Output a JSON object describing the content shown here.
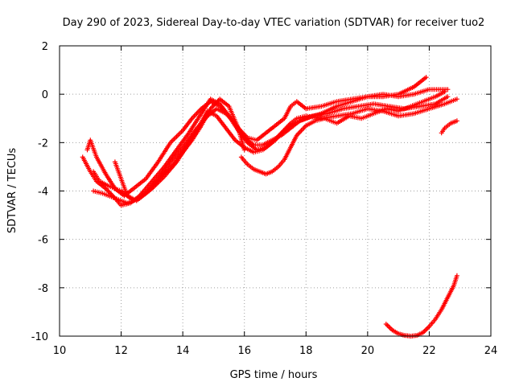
{
  "chart_data": {
    "type": "scatter",
    "title": "Day 290 of 2023, Sidereal Day-to-day VTEC variation (SDTVAR) for receiver tuo2",
    "xlabel": "GPS time / hours",
    "ylabel": "SDTVAR / TECUs",
    "xlim": [
      10,
      24
    ],
    "ylim": [
      -10,
      2
    ],
    "xticks": [
      10,
      12,
      14,
      16,
      18,
      20,
      22,
      24
    ],
    "yticks": [
      -10,
      -8,
      -6,
      -4,
      -2,
      0,
      2
    ],
    "xtick_labels": [
      "10",
      "12",
      "14",
      "16",
      "18",
      "20",
      "22",
      "24"
    ],
    "ytick_labels": [
      "-10",
      "-8",
      "-6",
      "-4",
      "-2",
      "0",
      "2"
    ],
    "grid": true,
    "marker": "+",
    "color": "#ff0000",
    "series": [
      {
        "name": "track-1",
        "x": [
          10.75,
          11.0,
          11.2,
          11.5,
          11.8,
          12.0,
          12.3,
          12.6,
          13.0,
          13.4,
          13.8,
          14.2,
          14.6,
          14.9,
          15.2,
          15.5,
          15.8,
          16.1,
          16.4,
          16.7,
          17.0,
          17.3,
          17.6,
          18.0,
          18.5,
          19.0,
          19.5,
          20.0,
          20.5,
          21.0,
          21.5,
          21.9
        ],
        "y": [
          -2.6,
          -3.2,
          -3.6,
          -3.9,
          -4.3,
          -4.6,
          -4.5,
          -4.2,
          -3.6,
          -3.0,
          -2.3,
          -1.6,
          -0.8,
          -0.2,
          -0.4,
          -0.9,
          -1.5,
          -2.0,
          -2.3,
          -2.2,
          -1.9,
          -1.5,
          -1.2,
          -1.0,
          -0.8,
          -0.5,
          -0.3,
          -0.1,
          -0.1,
          0.0,
          0.3,
          0.7
        ]
      },
      {
        "name": "track-2",
        "x": [
          10.9,
          11.0,
          11.2,
          11.5,
          11.8,
          12.1,
          12.4,
          12.8,
          13.2,
          13.6,
          14.0,
          14.3,
          14.6,
          14.9,
          15.2,
          15.5,
          15.8,
          16.1,
          16.4,
          16.7,
          17.0,
          17.3,
          17.5,
          17.7,
          18.0,
          18.5,
          19.0,
          19.5,
          20.0,
          20.5,
          21.0,
          21.5,
          22.0,
          22.6
        ],
        "y": [
          -2.3,
          -1.9,
          -2.6,
          -3.3,
          -3.9,
          -4.2,
          -3.9,
          -3.5,
          -2.8,
          -2.0,
          -1.5,
          -1.0,
          -0.6,
          -0.3,
          -0.5,
          -0.9,
          -1.4,
          -1.8,
          -1.9,
          -1.6,
          -1.3,
          -1.0,
          -0.5,
          -0.3,
          -0.6,
          -0.5,
          -0.3,
          -0.2,
          -0.1,
          0.0,
          -0.1,
          0.0,
          0.2,
          0.2
        ]
      },
      {
        "name": "track-3",
        "x": [
          11.1,
          11.3,
          11.6,
          12.0,
          12.4,
          12.8,
          13.2,
          13.6,
          14.0,
          14.4,
          14.8,
          15.1,
          15.4,
          15.7,
          16.0,
          16.3,
          16.6,
          16.9,
          17.2,
          17.5,
          17.8,
          18.2,
          18.7,
          19.2,
          19.7,
          20.2,
          20.7,
          21.2,
          21.7,
          22.2,
          22.6
        ],
        "y": [
          -3.2,
          -3.6,
          -3.8,
          -4.0,
          -4.4,
          -4.1,
          -3.5,
          -2.8,
          -2.2,
          -1.5,
          -0.9,
          -0.6,
          -0.8,
          -1.2,
          -1.8,
          -2.1,
          -2.1,
          -1.9,
          -1.7,
          -1.4,
          -1.1,
          -0.9,
          -0.8,
          -0.6,
          -0.5,
          -0.4,
          -0.5,
          -0.6,
          -0.5,
          -0.4,
          -0.1
        ]
      },
      {
        "name": "track-4",
        "x": [
          11.1,
          11.4,
          11.8,
          12.2,
          12.6,
          13.0,
          13.4,
          13.8,
          14.2,
          14.5,
          14.8,
          15.1,
          15.4,
          15.7,
          16.0,
          16.3,
          16.6,
          16.9,
          17.2,
          17.5,
          17.7,
          18.0,
          18.5,
          19.0,
          19.5,
          20.0,
          20.5,
          21.0,
          21.5,
          22.0,
          22.5,
          22.9
        ],
        "y": [
          -4.0,
          -4.1,
          -4.3,
          -4.5,
          -4.3,
          -3.9,
          -3.4,
          -2.8,
          -2.0,
          -1.4,
          -0.7,
          -0.9,
          -1.4,
          -1.9,
          -2.2,
          -2.4,
          -2.3,
          -2.0,
          -1.6,
          -1.2,
          -1.0,
          -0.9,
          -1.0,
          -0.9,
          -0.8,
          -0.6,
          -0.7,
          -0.9,
          -0.8,
          -0.6,
          -0.4,
          -0.2
        ]
      },
      {
        "name": "track-5",
        "x": [
          11.8,
          12.0,
          12.2,
          12.5,
          12.9,
          13.3,
          13.7,
          14.0,
          14.3,
          14.6,
          14.9,
          15.2,
          15.5,
          15.8,
          16.0
        ],
        "y": [
          -2.8,
          -3.5,
          -4.2,
          -4.4,
          -4.0,
          -3.4,
          -2.9,
          -2.4,
          -1.9,
          -1.3,
          -0.6,
          -0.2,
          -0.5,
          -1.4,
          -2.3
        ]
      },
      {
        "name": "track-6",
        "x": [
          15.9,
          16.1,
          16.3,
          16.5,
          16.7,
          16.9,
          17.1,
          17.3,
          17.5,
          17.7,
          18.0,
          18.3,
          18.6,
          19.0,
          19.4,
          19.8,
          20.2,
          20.6,
          21.0,
          21.4,
          21.8,
          22.2,
          22.5
        ],
        "y": [
          -2.6,
          -2.9,
          -3.1,
          -3.2,
          -3.3,
          -3.2,
          -3.0,
          -2.7,
          -2.2,
          -1.7,
          -1.3,
          -1.1,
          -1.0,
          -1.2,
          -0.9,
          -1.0,
          -0.8,
          -0.6,
          -0.7,
          -0.5,
          -0.3,
          -0.1,
          0.1
        ]
      },
      {
        "name": "track-7",
        "x": [
          22.4,
          22.5,
          22.6,
          22.7,
          22.8,
          22.9
        ],
        "y": [
          -1.6,
          -1.4,
          -1.3,
          -1.2,
          -1.15,
          -1.1
        ]
      },
      {
        "name": "track-8",
        "x": [
          20.6,
          20.8,
          21.0,
          21.2,
          21.4,
          21.6,
          21.8,
          22.0,
          22.2,
          22.4,
          22.6,
          22.8,
          22.9
        ],
        "y": [
          -9.5,
          -9.75,
          -9.9,
          -9.97,
          -10.0,
          -9.97,
          -9.85,
          -9.6,
          -9.3,
          -8.9,
          -8.4,
          -7.9,
          -7.5
        ]
      }
    ]
  }
}
